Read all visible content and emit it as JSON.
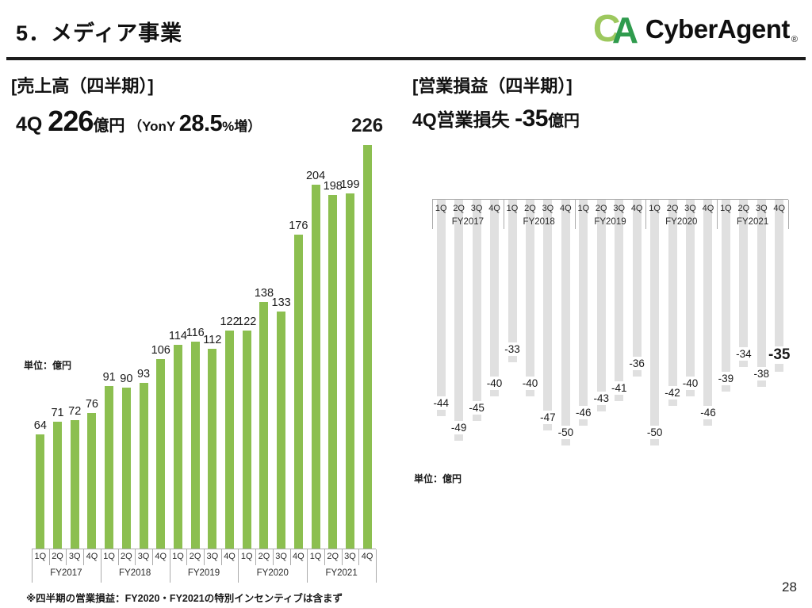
{
  "slide": {
    "title": "5．メディア事業",
    "page_number": "28",
    "footnote": "※四半期の営業損益：FY2020・FY2021の特別インセンティブは含まず"
  },
  "logo": {
    "mark_c": "C",
    "mark_a": "A",
    "text": "CyberAgent",
    "registered": "®",
    "color_c": "#9dc85e",
    "color_a": "#2f9b4d"
  },
  "left_panel": {
    "heading": "[売上高（四半期）]",
    "headline": {
      "prefix": "4Q ",
      "value": "226",
      "unit": "億円",
      "paren_open": " （YonY ",
      "yoy_value": "28.5",
      "paren_close": "%増）"
    },
    "unit_label": "単位：億円"
  },
  "right_panel": {
    "heading": "[営業損益（四半期）]",
    "headline": {
      "prefix": "4Q営業損失 ",
      "value": "-35",
      "unit": "億円"
    },
    "unit_label": "単位：億円"
  },
  "chart_data": [
    {
      "id": "revenue-quarterly",
      "type": "bar",
      "title": "売上高（四半期）",
      "unit": "億円",
      "fiscal_years": [
        "FY2017",
        "FY2018",
        "FY2019",
        "FY2020",
        "FY2021"
      ],
      "quarters": [
        "1Q",
        "2Q",
        "3Q",
        "4Q"
      ],
      "values": [
        64,
        71,
        72,
        76,
        91,
        90,
        93,
        106,
        114,
        116,
        112,
        122,
        122,
        138,
        133,
        176,
        204,
        198,
        199,
        226
      ],
      "bar_color": "#8cbf50",
      "baseline": 0,
      "legend": "none",
      "grid": "off",
      "highlight_last_label": true
    },
    {
      "id": "operating-loss-quarterly",
      "type": "bar",
      "title": "営業損益（四半期）",
      "unit": "億円",
      "fiscal_years": [
        "FY2017",
        "FY2018",
        "FY2019",
        "FY2020",
        "FY2021"
      ],
      "quarters": [
        "1Q",
        "2Q",
        "3Q",
        "4Q"
      ],
      "values": [
        -44,
        -49,
        -45,
        -40,
        -33,
        -40,
        -47,
        -50,
        -46,
        -43,
        -41,
        -36,
        -50,
        -42,
        -40,
        -46,
        -39,
        -34,
        -38,
        -35
      ],
      "bar_color": "#e0e0e0",
      "baseline": 0,
      "legend": "none",
      "grid": "off",
      "highlight_last_label": true
    }
  ]
}
